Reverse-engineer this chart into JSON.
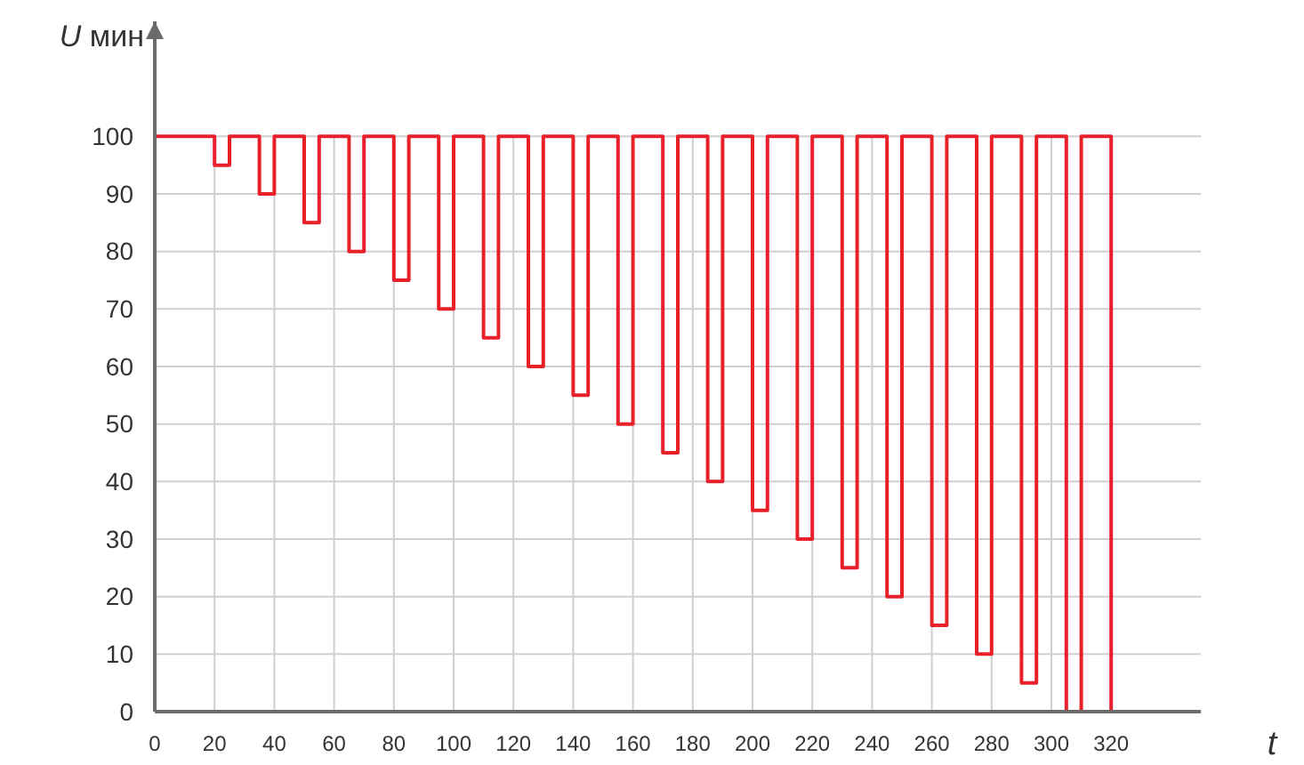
{
  "chart_data": {
    "type": "step",
    "xlabel": "t",
    "ylabel": "U мин",
    "x": [
      0,
      20,
      25,
      35,
      40,
      50,
      55,
      65,
      70,
      80,
      85,
      95,
      100,
      110,
      115,
      125,
      130,
      140,
      145,
      155,
      160,
      170,
      175,
      185,
      190,
      200,
      205,
      215,
      220,
      230,
      235,
      245,
      250,
      260,
      265,
      275,
      280,
      290,
      295,
      305,
      310,
      320
    ],
    "series": [
      {
        "color": "#e8202a",
        "values": [
          100,
          95,
          100,
          90,
          100,
          85,
          100,
          80,
          100,
          75,
          100,
          70,
          100,
          65,
          100,
          60,
          100,
          55,
          100,
          50,
          100,
          45,
          100,
          40,
          100,
          35,
          100,
          30,
          100,
          25,
          100,
          20,
          100,
          15,
          100,
          10,
          100,
          5,
          100,
          0,
          100,
          0
        ]
      }
    ],
    "xlim": [
      0,
      350
    ],
    "ylim": [
      0,
      120
    ],
    "xticks": [
      0,
      20,
      40,
      60,
      80,
      100,
      120,
      140,
      160,
      180,
      200,
      220,
      240,
      260,
      280,
      300,
      320
    ],
    "yticks": [
      0,
      10,
      20,
      30,
      40,
      50,
      60,
      70,
      80,
      90,
      100
    ],
    "grid": true,
    "line_style": "solid",
    "marker": "none"
  }
}
